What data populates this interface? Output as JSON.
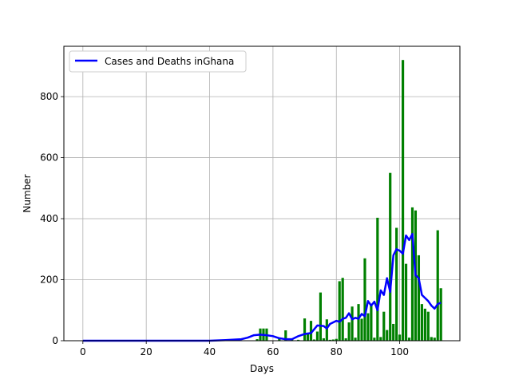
{
  "chart_data": {
    "type": "bar",
    "xlabel": "Days",
    "ylabel": "Number",
    "xlim": [
      -6,
      119
    ],
    "ylim": [
      0,
      965
    ],
    "xticks": [
      0,
      20,
      40,
      60,
      80,
      100
    ],
    "yticks": [
      0,
      200,
      400,
      600,
      800
    ],
    "grid": true,
    "legend": {
      "placement": "top-left",
      "label": "Cases and Deaths inGhana"
    },
    "colors": {
      "bars": "#008000",
      "line": "#0000ff",
      "grid": "#b0b0b0"
    },
    "bars": {
      "x": [
        55,
        56,
        57,
        58,
        62,
        64,
        66,
        68,
        70,
        71,
        72,
        73,
        74,
        75,
        76,
        77,
        78,
        79,
        80,
        81,
        82,
        83,
        84,
        85,
        86,
        87,
        88,
        89,
        90,
        91,
        92,
        93,
        94,
        95,
        96,
        97,
        98,
        99,
        100,
        101,
        102,
        103,
        104,
        105,
        106,
        107,
        108,
        109,
        110,
        111,
        112,
        113
      ],
      "values": [
        5,
        40,
        40,
        40,
        10,
        34,
        5,
        3,
        73,
        25,
        65,
        4,
        30,
        158,
        8,
        70,
        3,
        4,
        6,
        195,
        206,
        8,
        60,
        112,
        10,
        120,
        72,
        270,
        90,
        120,
        10,
        403,
        12,
        95,
        35,
        550,
        55,
        370,
        20,
        920,
        252,
        10,
        437,
        427,
        280,
        120,
        105,
        95,
        12,
        10,
        362,
        172
      ]
    },
    "line": {
      "x": [
        0,
        40,
        45,
        50,
        52,
        54,
        56,
        58,
        60,
        62,
        64,
        66,
        68,
        70,
        72,
        74,
        76,
        77,
        78,
        80,
        81,
        82,
        83,
        84,
        85,
        86,
        87,
        88,
        89,
        90,
        91,
        92,
        93,
        94,
        95,
        96,
        97,
        98,
        99,
        100,
        101,
        102,
        103,
        104,
        105,
        106,
        107,
        108,
        109,
        110,
        111,
        112,
        113
      ],
      "values": [
        0,
        0,
        2,
        5,
        10,
        18,
        20,
        18,
        15,
        8,
        5,
        5,
        15,
        22,
        25,
        50,
        48,
        40,
        55,
        65,
        62,
        72,
        75,
        90,
        70,
        75,
        72,
        88,
        80,
        130,
        115,
        128,
        100,
        165,
        150,
        205,
        160,
        280,
        300,
        295,
        285,
        345,
        330,
        350,
        215,
        205,
        150,
        140,
        130,
        115,
        105,
        120,
        125
      ]
    }
  }
}
